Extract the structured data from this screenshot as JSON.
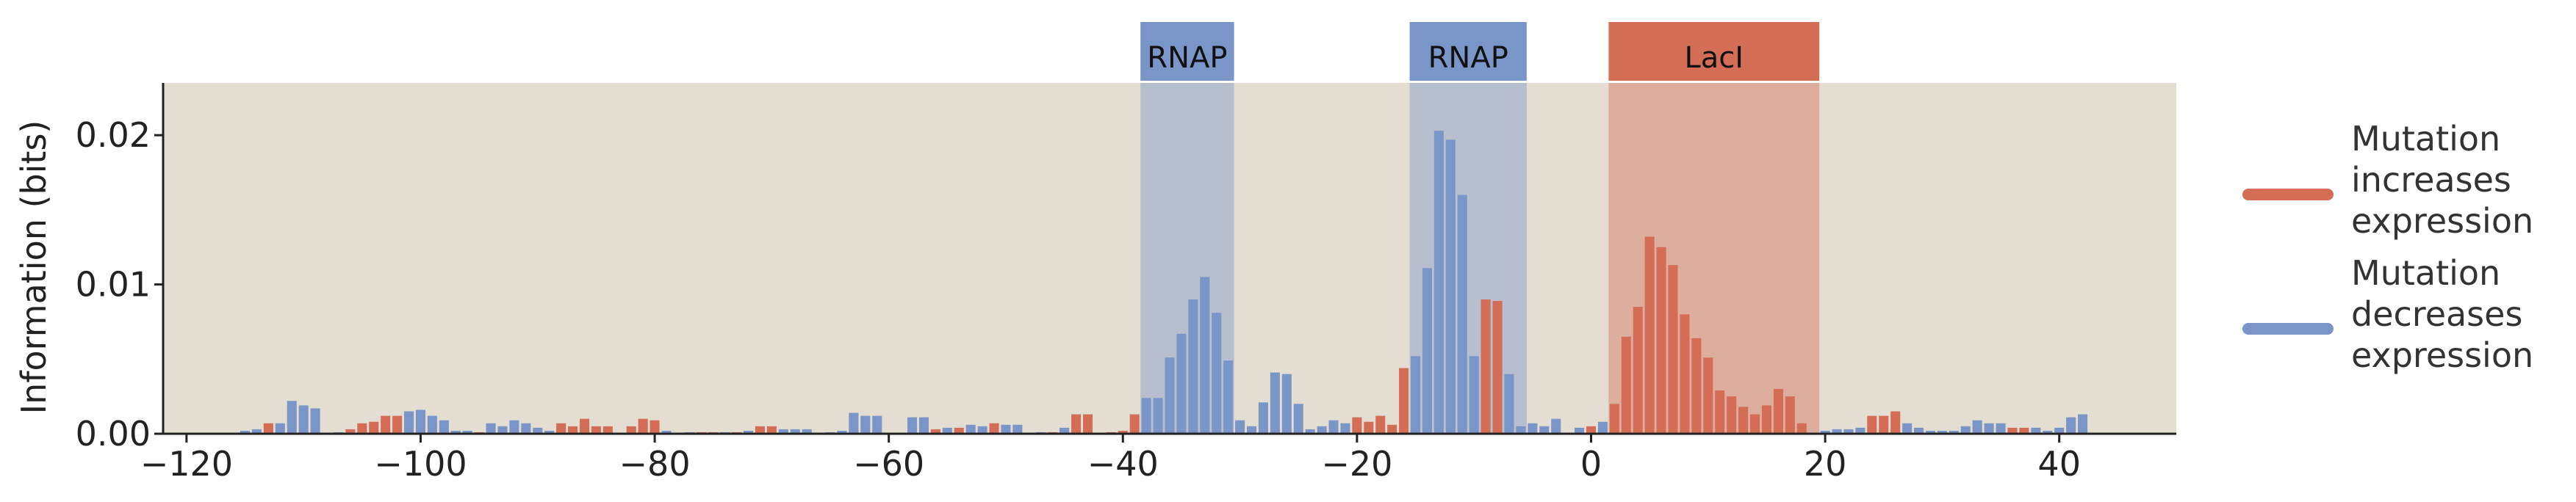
{
  "chart_data": {
    "type": "bar",
    "ylabel": "Information (bits)",
    "xlim": [
      -122,
      50
    ],
    "ylim": [
      0,
      0.0235
    ],
    "x_ticks": [
      -120,
      -100,
      -80,
      -60,
      -40,
      -20,
      0,
      20,
      40
    ],
    "x_tick_labels": [
      "−120",
      "−100",
      "−80",
      "−60",
      "−40",
      "−20",
      "0",
      "20",
      "40"
    ],
    "y_ticks": [
      0.0,
      0.01,
      0.02
    ],
    "y_tick_labels": [
      "0.00",
      "0.01",
      "0.02"
    ],
    "grid": false,
    "regions": [
      {
        "label": "RNAP",
        "start": -38.5,
        "end": -30.5,
        "color": "#7a96c9"
      },
      {
        "label": "RNAP",
        "start": -15.5,
        "end": -5.5,
        "color": "#7a96c9"
      },
      {
        "label": "LacI",
        "start": 1.5,
        "end": 19.5,
        "color": "#d36d56"
      }
    ],
    "legend": {
      "placement": "right",
      "entries": [
        {
          "lines": [
            "Mutation",
            "increases",
            "expression"
          ],
          "color": "#d36d56"
        },
        {
          "lines": [
            "Mutation",
            "decreases",
            "expression"
          ],
          "color": "#7a96c9"
        }
      ]
    },
    "colors": {
      "increase": "#d36d56",
      "decrease": "#7a96c9",
      "background": "#e3ddd2"
    },
    "bars": [
      {
        "x": -115,
        "y": 0.0002,
        "effect": "decrease"
      },
      {
        "x": -114,
        "y": 0.0003,
        "effect": "decrease"
      },
      {
        "x": -113,
        "y": 0.0007,
        "effect": "increase"
      },
      {
        "x": -112,
        "y": 0.0007,
        "effect": "decrease"
      },
      {
        "x": -111,
        "y": 0.0022,
        "effect": "decrease"
      },
      {
        "x": -110,
        "y": 0.0019,
        "effect": "decrease"
      },
      {
        "x": -109,
        "y": 0.0017,
        "effect": "decrease"
      },
      {
        "x": -107,
        "y": 0.0001,
        "effect": "decrease"
      },
      {
        "x": -106,
        "y": 0.0003,
        "effect": "increase"
      },
      {
        "x": -105,
        "y": 0.0007,
        "effect": "increase"
      },
      {
        "x": -104,
        "y": 0.0008,
        "effect": "increase"
      },
      {
        "x": -103,
        "y": 0.0012,
        "effect": "increase"
      },
      {
        "x": -102,
        "y": 0.0012,
        "effect": "increase"
      },
      {
        "x": -101,
        "y": 0.0015,
        "effect": "decrease"
      },
      {
        "x": -100,
        "y": 0.0016,
        "effect": "decrease"
      },
      {
        "x": -99,
        "y": 0.0012,
        "effect": "decrease"
      },
      {
        "x": -98,
        "y": 0.0009,
        "effect": "decrease"
      },
      {
        "x": -97,
        "y": 0.0002,
        "effect": "decrease"
      },
      {
        "x": -96,
        "y": 0.0002,
        "effect": "decrease"
      },
      {
        "x": -95,
        "y": 0.0001,
        "effect": "increase"
      },
      {
        "x": -94,
        "y": 0.0007,
        "effect": "decrease"
      },
      {
        "x": -93,
        "y": 0.0005,
        "effect": "decrease"
      },
      {
        "x": -92,
        "y": 0.0009,
        "effect": "decrease"
      },
      {
        "x": -91,
        "y": 0.0007,
        "effect": "decrease"
      },
      {
        "x": -90,
        "y": 0.0004,
        "effect": "decrease"
      },
      {
        "x": -89,
        "y": 0.0002,
        "effect": "decrease"
      },
      {
        "x": -88,
        "y": 0.0007,
        "effect": "increase"
      },
      {
        "x": -87,
        "y": 0.0005,
        "effect": "increase"
      },
      {
        "x": -86,
        "y": 0.001,
        "effect": "increase"
      },
      {
        "x": -85,
        "y": 0.0005,
        "effect": "increase"
      },
      {
        "x": -84,
        "y": 0.0005,
        "effect": "increase"
      },
      {
        "x": -82,
        "y": 0.0005,
        "effect": "increase"
      },
      {
        "x": -81,
        "y": 0.001,
        "effect": "increase"
      },
      {
        "x": -80,
        "y": 0.0009,
        "effect": "increase"
      },
      {
        "x": -79,
        "y": 0.0002,
        "effect": "decrease"
      },
      {
        "x": -77,
        "y": 0.0001,
        "effect": "decrease"
      },
      {
        "x": -76,
        "y": 0.0001,
        "effect": "increase"
      },
      {
        "x": -75,
        "y": 0.0001,
        "effect": "increase"
      },
      {
        "x": -74,
        "y": 0.0001,
        "effect": "decrease"
      },
      {
        "x": -73,
        "y": 0.0001,
        "effect": "increase"
      },
      {
        "x": -72,
        "y": 0.0002,
        "effect": "decrease"
      },
      {
        "x": -71,
        "y": 0.0005,
        "effect": "increase"
      },
      {
        "x": -70,
        "y": 0.0005,
        "effect": "increase"
      },
      {
        "x": -69,
        "y": 0.0003,
        "effect": "decrease"
      },
      {
        "x": -68,
        "y": 0.0003,
        "effect": "decrease"
      },
      {
        "x": -67,
        "y": 0.0003,
        "effect": "decrease"
      },
      {
        "x": -65,
        "y": 0.0001,
        "effect": "decrease"
      },
      {
        "x": -64,
        "y": 0.0002,
        "effect": "decrease"
      },
      {
        "x": -63,
        "y": 0.0014,
        "effect": "decrease"
      },
      {
        "x": -62,
        "y": 0.0012,
        "effect": "decrease"
      },
      {
        "x": -61,
        "y": 0.0012,
        "effect": "decrease"
      },
      {
        "x": -58,
        "y": 0.0011,
        "effect": "decrease"
      },
      {
        "x": -57,
        "y": 0.0011,
        "effect": "decrease"
      },
      {
        "x": -56,
        "y": 0.0003,
        "effect": "increase"
      },
      {
        "x": -55,
        "y": 0.0004,
        "effect": "decrease"
      },
      {
        "x": -54,
        "y": 0.0004,
        "effect": "increase"
      },
      {
        "x": -53,
        "y": 0.0006,
        "effect": "decrease"
      },
      {
        "x": -52,
        "y": 0.0005,
        "effect": "decrease"
      },
      {
        "x": -51,
        "y": 0.0007,
        "effect": "increase"
      },
      {
        "x": -50,
        "y": 0.0006,
        "effect": "decrease"
      },
      {
        "x": -49,
        "y": 0.0006,
        "effect": "decrease"
      },
      {
        "x": -47,
        "y": 0.0001,
        "effect": "decrease"
      },
      {
        "x": -46,
        "y": 0.0001,
        "effect": "increase"
      },
      {
        "x": -45,
        "y": 0.0004,
        "effect": "decrease"
      },
      {
        "x": -44,
        "y": 0.0013,
        "effect": "increase"
      },
      {
        "x": -43,
        "y": 0.0013,
        "effect": "increase"
      },
      {
        "x": -41,
        "y": 0.0001,
        "effect": "increase"
      },
      {
        "x": -40,
        "y": 0.0002,
        "effect": "increase"
      },
      {
        "x": -39,
        "y": 0.0013,
        "effect": "increase"
      },
      {
        "x": -38,
        "y": 0.0024,
        "effect": "decrease"
      },
      {
        "x": -37,
        "y": 0.0024,
        "effect": "decrease"
      },
      {
        "x": -36,
        "y": 0.0051,
        "effect": "decrease"
      },
      {
        "x": -35,
        "y": 0.0067,
        "effect": "decrease"
      },
      {
        "x": -34,
        "y": 0.009,
        "effect": "decrease"
      },
      {
        "x": -33,
        "y": 0.0105,
        "effect": "decrease"
      },
      {
        "x": -32,
        "y": 0.0081,
        "effect": "decrease"
      },
      {
        "x": -31,
        "y": 0.0049,
        "effect": "decrease"
      },
      {
        "x": -30,
        "y": 0.0009,
        "effect": "decrease"
      },
      {
        "x": -29,
        "y": 0.0005,
        "effect": "decrease"
      },
      {
        "x": -28,
        "y": 0.0021,
        "effect": "decrease"
      },
      {
        "x": -27,
        "y": 0.0041,
        "effect": "decrease"
      },
      {
        "x": -26,
        "y": 0.004,
        "effect": "decrease"
      },
      {
        "x": -25,
        "y": 0.002,
        "effect": "decrease"
      },
      {
        "x": -24,
        "y": 0.0003,
        "effect": "decrease"
      },
      {
        "x": -23,
        "y": 0.0005,
        "effect": "decrease"
      },
      {
        "x": -22,
        "y": 0.0009,
        "effect": "decrease"
      },
      {
        "x": -21,
        "y": 0.0007,
        "effect": "decrease"
      },
      {
        "x": -20,
        "y": 0.0011,
        "effect": "increase"
      },
      {
        "x": -19,
        "y": 0.0008,
        "effect": "increase"
      },
      {
        "x": -18,
        "y": 0.0012,
        "effect": "increase"
      },
      {
        "x": -17,
        "y": 0.0006,
        "effect": "increase"
      },
      {
        "x": -16,
        "y": 0.0044,
        "effect": "increase"
      },
      {
        "x": -15,
        "y": 0.0052,
        "effect": "decrease"
      },
      {
        "x": -14,
        "y": 0.0111,
        "effect": "decrease"
      },
      {
        "x": -13,
        "y": 0.0203,
        "effect": "decrease"
      },
      {
        "x": -12,
        "y": 0.0197,
        "effect": "decrease"
      },
      {
        "x": -11,
        "y": 0.016,
        "effect": "decrease"
      },
      {
        "x": -10,
        "y": 0.0052,
        "effect": "decrease"
      },
      {
        "x": -9,
        "y": 0.009,
        "effect": "increase"
      },
      {
        "x": -8,
        "y": 0.0089,
        "effect": "increase"
      },
      {
        "x": -7,
        "y": 0.004,
        "effect": "decrease"
      },
      {
        "x": -6,
        "y": 0.0005,
        "effect": "decrease"
      },
      {
        "x": -5,
        "y": 0.0007,
        "effect": "decrease"
      },
      {
        "x": -4,
        "y": 0.0005,
        "effect": "decrease"
      },
      {
        "x": -3,
        "y": 0.001,
        "effect": "decrease"
      },
      {
        "x": -1,
        "y": 0.0004,
        "effect": "decrease"
      },
      {
        "x": 0,
        "y": 0.0005,
        "effect": "increase"
      },
      {
        "x": 1,
        "y": 0.0008,
        "effect": "decrease"
      },
      {
        "x": 2,
        "y": 0.002,
        "effect": "increase"
      },
      {
        "x": 3,
        "y": 0.0065,
        "effect": "increase"
      },
      {
        "x": 4,
        "y": 0.0085,
        "effect": "increase"
      },
      {
        "x": 5,
        "y": 0.0132,
        "effect": "increase"
      },
      {
        "x": 6,
        "y": 0.0125,
        "effect": "increase"
      },
      {
        "x": 7,
        "y": 0.0113,
        "effect": "increase"
      },
      {
        "x": 8,
        "y": 0.008,
        "effect": "increase"
      },
      {
        "x": 9,
        "y": 0.0064,
        "effect": "increase"
      },
      {
        "x": 10,
        "y": 0.0051,
        "effect": "increase"
      },
      {
        "x": 11,
        "y": 0.0029,
        "effect": "increase"
      },
      {
        "x": 12,
        "y": 0.0025,
        "effect": "increase"
      },
      {
        "x": 13,
        "y": 0.0018,
        "effect": "increase"
      },
      {
        "x": 14,
        "y": 0.0013,
        "effect": "increase"
      },
      {
        "x": 15,
        "y": 0.0019,
        "effect": "increase"
      },
      {
        "x": 16,
        "y": 0.003,
        "effect": "increase"
      },
      {
        "x": 17,
        "y": 0.0025,
        "effect": "increase"
      },
      {
        "x": 18,
        "y": 0.0007,
        "effect": "increase"
      },
      {
        "x": 20,
        "y": 0.0002,
        "effect": "decrease"
      },
      {
        "x": 21,
        "y": 0.0003,
        "effect": "decrease"
      },
      {
        "x": 22,
        "y": 0.0003,
        "effect": "decrease"
      },
      {
        "x": 23,
        "y": 0.0004,
        "effect": "decrease"
      },
      {
        "x": 24,
        "y": 0.0012,
        "effect": "increase"
      },
      {
        "x": 25,
        "y": 0.0012,
        "effect": "increase"
      },
      {
        "x": 26,
        "y": 0.0015,
        "effect": "increase"
      },
      {
        "x": 27,
        "y": 0.0007,
        "effect": "decrease"
      },
      {
        "x": 28,
        "y": 0.0004,
        "effect": "decrease"
      },
      {
        "x": 29,
        "y": 0.0002,
        "effect": "decrease"
      },
      {
        "x": 30,
        "y": 0.0002,
        "effect": "decrease"
      },
      {
        "x": 31,
        "y": 0.0002,
        "effect": "decrease"
      },
      {
        "x": 32,
        "y": 0.0005,
        "effect": "decrease"
      },
      {
        "x": 33,
        "y": 0.0009,
        "effect": "decrease"
      },
      {
        "x": 34,
        "y": 0.0007,
        "effect": "decrease"
      },
      {
        "x": 35,
        "y": 0.0007,
        "effect": "decrease"
      },
      {
        "x": 36,
        "y": 0.0004,
        "effect": "increase"
      },
      {
        "x": 37,
        "y": 0.0004,
        "effect": "increase"
      },
      {
        "x": 38,
        "y": 0.0004,
        "effect": "decrease"
      },
      {
        "x": 39,
        "y": 0.0002,
        "effect": "decrease"
      },
      {
        "x": 40,
        "y": 0.0004,
        "effect": "decrease"
      },
      {
        "x": 41,
        "y": 0.0011,
        "effect": "decrease"
      },
      {
        "x": 42,
        "y": 0.0013,
        "effect": "decrease"
      }
    ]
  }
}
